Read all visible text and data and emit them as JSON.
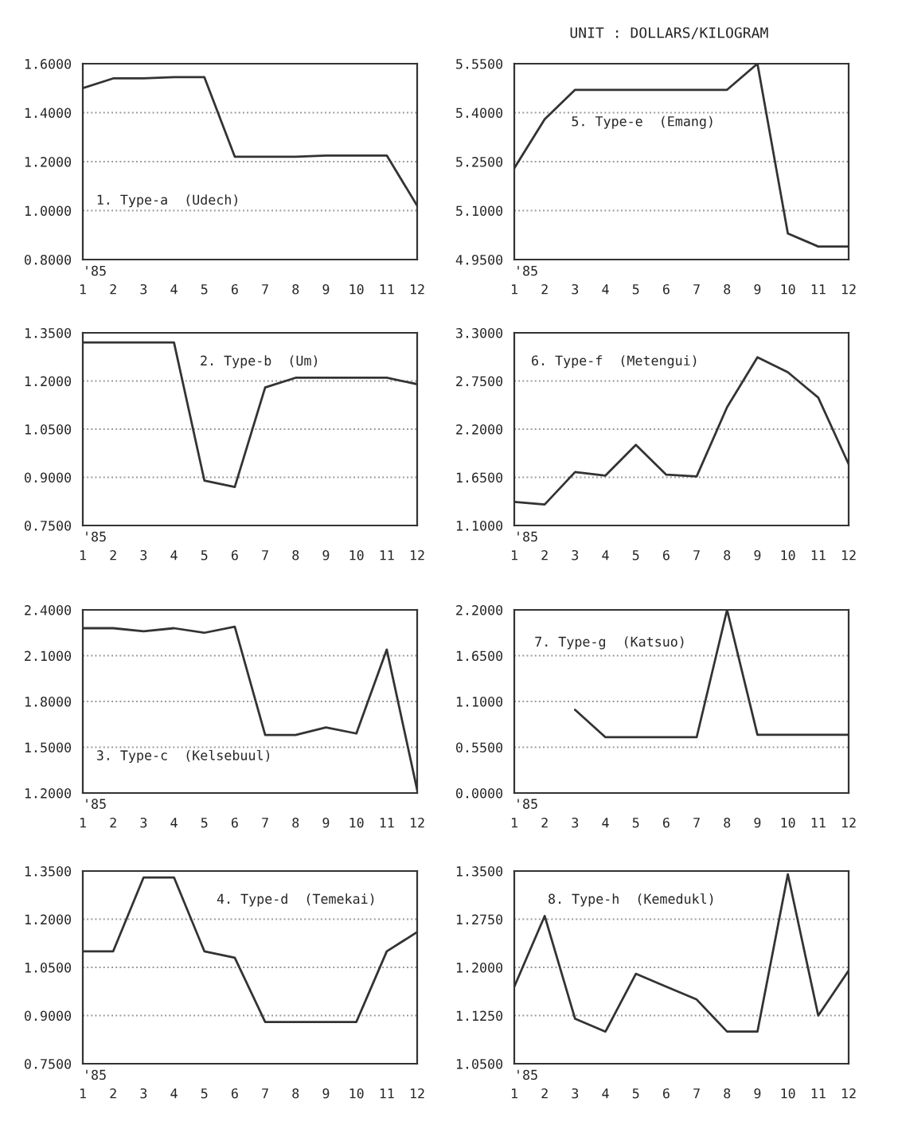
{
  "chart_data": [
    {
      "type": "line",
      "title": "1. Type-a  (Udech)",
      "x": [
        1,
        2,
        3,
        4,
        5,
        6,
        7,
        8,
        9,
        10,
        11,
        12
      ],
      "values": [
        1.5,
        1.54,
        1.54,
        1.545,
        1.545,
        1.22,
        1.22,
        1.22,
        1.225,
        1.225,
        1.225,
        1.02
      ],
      "color": "#333333",
      "xlim": [
        1,
        12
      ],
      "xticks": [
        1,
        2,
        3,
        4,
        5,
        6,
        7,
        8,
        9,
        10,
        11,
        12
      ],
      "ylim": [
        0.8,
        1.6
      ],
      "yticks": [
        {
          "value": 0.8,
          "label": "0.8000"
        },
        {
          "value": 1.0,
          "label": "1.0000"
        },
        {
          "value": 1.2,
          "label": "1.2000"
        },
        {
          "value": 1.4,
          "label": "1.4000"
        },
        {
          "value": 1.6,
          "label": "1.6000"
        }
      ],
      "grid": "y",
      "annotations": [
        "'85",
        "UNIT : DOLLARS/KILOGRAM"
      ]
    },
    {
      "type": "line",
      "title": "5. Type-e  (Emang)",
      "x": [
        1,
        2,
        3,
        4,
        5,
        6,
        7,
        8,
        9,
        10,
        11,
        12
      ],
      "values": [
        5.23,
        5.38,
        5.47,
        5.47,
        5.47,
        5.47,
        5.47,
        5.47,
        5.55,
        5.03,
        4.99,
        4.99
      ],
      "color": "#333333",
      "xlim": [
        1,
        12
      ],
      "xticks": [
        1,
        2,
        3,
        4,
        5,
        6,
        7,
        8,
        9,
        10,
        11,
        12
      ],
      "ylim": [
        4.95,
        5.55
      ],
      "yticks": [
        {
          "value": 4.95,
          "label": "4.9500"
        },
        {
          "value": 5.1,
          "label": "5.1000"
        },
        {
          "value": 5.25,
          "label": "5.2500"
        },
        {
          "value": 5.4,
          "label": "5.4000"
        },
        {
          "value": 5.55,
          "label": "5.5500"
        }
      ],
      "grid": "y",
      "annotations": [
        "'85"
      ]
    },
    {
      "type": "line",
      "title": "2. Type-b  (Um)",
      "x": [
        1,
        2,
        3,
        4,
        5,
        6,
        7,
        8,
        9,
        10,
        11,
        12
      ],
      "values": [
        1.32,
        1.32,
        1.32,
        1.32,
        0.89,
        0.87,
        1.18,
        1.21,
        1.21,
        1.21,
        1.21,
        1.19
      ],
      "color": "#333333",
      "xlim": [
        1,
        12
      ],
      "xticks": [
        1,
        2,
        3,
        4,
        5,
        6,
        7,
        8,
        9,
        10,
        11,
        12
      ],
      "ylim": [
        0.75,
        1.35
      ],
      "yticks": [
        {
          "value": 0.75,
          "label": "0.7500"
        },
        {
          "value": 0.9,
          "label": "0.9000"
        },
        {
          "value": 1.05,
          "label": "1.0500"
        },
        {
          "value": 1.2,
          "label": "1.2000"
        },
        {
          "value": 1.35,
          "label": "1.3500"
        }
      ],
      "grid": "y",
      "annotations": [
        "'85"
      ]
    },
    {
      "type": "line",
      "title": "6. Type-f  (Metengui)",
      "x": [
        1,
        2,
        3,
        4,
        5,
        6,
        7,
        8,
        9,
        10,
        11,
        12
      ],
      "values": [
        1.37,
        1.34,
        1.71,
        1.67,
        2.02,
        1.68,
        1.66,
        2.45,
        3.02,
        2.85,
        2.56,
        1.8
      ],
      "color": "#333333",
      "xlim": [
        1,
        12
      ],
      "xticks": [
        1,
        2,
        3,
        4,
        5,
        6,
        7,
        8,
        9,
        10,
        11,
        12
      ],
      "ylim": [
        1.1,
        3.3
      ],
      "yticks": [
        {
          "value": 1.1,
          "label": "1.1000"
        },
        {
          "value": 1.65,
          "label": "1.6500"
        },
        {
          "value": 2.2,
          "label": "2.2000"
        },
        {
          "value": 2.75,
          "label": "2.7500"
        },
        {
          "value": 3.3,
          "label": "3.3000"
        }
      ],
      "grid": "y",
      "annotations": [
        "'85"
      ]
    },
    {
      "type": "line",
      "title": "3. Type-c  (Kelsebuul)",
      "x": [
        1,
        2,
        3,
        4,
        5,
        6,
        7,
        8,
        9,
        10,
        11,
        12
      ],
      "values": [
        2.28,
        2.28,
        2.26,
        2.28,
        2.25,
        2.29,
        1.58,
        1.58,
        1.63,
        1.59,
        2.14,
        1.22
      ],
      "color": "#333333",
      "xlim": [
        1,
        12
      ],
      "xticks": [
        1,
        2,
        3,
        4,
        5,
        6,
        7,
        8,
        9,
        10,
        11,
        12
      ],
      "ylim": [
        1.2,
        2.4
      ],
      "yticks": [
        {
          "value": 1.2,
          "label": "1.2000"
        },
        {
          "value": 1.5,
          "label": "1.5000"
        },
        {
          "value": 1.8,
          "label": "1.8000"
        },
        {
          "value": 2.1,
          "label": "2.1000"
        },
        {
          "value": 2.4,
          "label": "2.4000"
        }
      ],
      "grid": "y",
      "annotations": [
        "'85"
      ]
    },
    {
      "type": "line",
      "title": "7. Type-g  (Katsuo)",
      "x": [
        3,
        4,
        5,
        6,
        7,
        8,
        9,
        10,
        11,
        12
      ],
      "values": [
        1.0,
        0.67,
        0.67,
        0.67,
        0.67,
        2.2,
        0.7,
        0.7,
        0.7,
        0.7
      ],
      "color": "#333333",
      "xlim": [
        1,
        12
      ],
      "xticks": [
        1,
        2,
        3,
        4,
        5,
        6,
        7,
        8,
        9,
        10,
        11,
        12
      ],
      "ylim": [
        0,
        2.2
      ],
      "yticks": [
        {
          "value": 0,
          "label": "0.0000"
        },
        {
          "value": 0.55,
          "label": "0.5500"
        },
        {
          "value": 1.1,
          "label": "1.1000"
        },
        {
          "value": 1.65,
          "label": "1.6500"
        },
        {
          "value": 2.2,
          "label": "2.2000"
        }
      ],
      "grid": "y",
      "annotations": [
        "'85"
      ]
    },
    {
      "type": "line",
      "title": "4. Type-d  (Temekai)",
      "x": [
        1,
        2,
        3,
        4,
        5,
        6,
        7,
        8,
        9,
        10,
        11,
        12
      ],
      "values": [
        1.1,
        1.1,
        1.33,
        1.33,
        1.1,
        1.08,
        0.88,
        0.88,
        0.88,
        0.88,
        1.1,
        1.16
      ],
      "color": "#333333",
      "xlim": [
        1,
        12
      ],
      "xticks": [
        1,
        2,
        3,
        4,
        5,
        6,
        7,
        8,
        9,
        10,
        11,
        12
      ],
      "ylim": [
        0.75,
        1.35
      ],
      "yticks": [
        {
          "value": 0.75,
          "label": "0.7500"
        },
        {
          "value": 0.9,
          "label": "0.9000"
        },
        {
          "value": 1.05,
          "label": "1.0500"
        },
        {
          "value": 1.2,
          "label": "1.2000"
        },
        {
          "value": 1.35,
          "label": "1.3500"
        }
      ],
      "grid": "y",
      "annotations": [
        "'85"
      ]
    },
    {
      "type": "line",
      "title": "8. Type-h  (Kemedukl)",
      "x": [
        1,
        2,
        3,
        4,
        5,
        6,
        7,
        8,
        9,
        10,
        11,
        12
      ],
      "values": [
        1.17,
        1.28,
        1.12,
        1.1,
        1.19,
        1.17,
        1.15,
        1.1,
        1.1,
        1.345,
        1.125,
        1.195
      ],
      "color": "#333333",
      "xlim": [
        1,
        12
      ],
      "xticks": [
        1,
        2,
        3,
        4,
        5,
        6,
        7,
        8,
        9,
        10,
        11,
        12
      ],
      "ylim": [
        1.05,
        1.35
      ],
      "yticks": [
        {
          "value": 1.05,
          "label": "1.0500"
        },
        {
          "value": 1.125,
          "label": "1.1250"
        },
        {
          "value": 1.2,
          "label": "1.2000"
        },
        {
          "value": 1.275,
          "label": "1.2750"
        },
        {
          "value": 1.35,
          "label": "1.3500"
        }
      ],
      "grid": "y",
      "annotations": [
        "'85"
      ]
    }
  ]
}
